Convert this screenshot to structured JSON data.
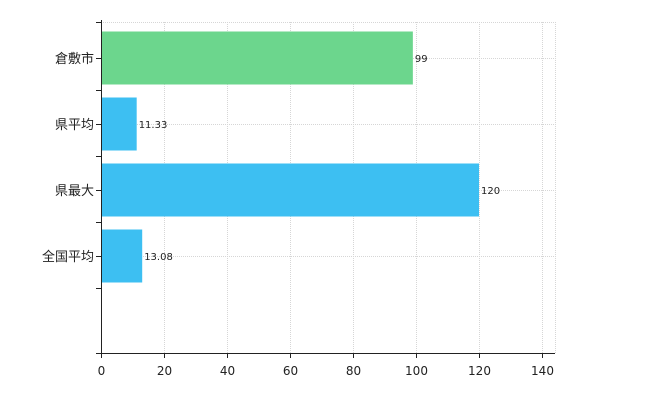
{
  "chart_data": {
    "type": "bar",
    "orientation": "horizontal",
    "categories": [
      "倉敷市",
      "県平均",
      "県最大",
      "全国平均"
    ],
    "values": [
      99,
      11.33,
      120,
      13.08
    ],
    "value_labels": [
      "99",
      "11.33",
      "120",
      "13.08"
    ],
    "bar_colors": [
      "#6cd68d",
      "#3dbff2",
      "#3dbff2",
      "#3dbff2"
    ],
    "xlim": [
      0,
      140
    ],
    "xticks": [
      0,
      20,
      40,
      60,
      80,
      100,
      120,
      140
    ],
    "xtick_labels": [
      "0",
      "20",
      "40",
      "60",
      "80",
      "100",
      "120",
      "140"
    ],
    "grid": true,
    "title": "",
    "xlabel": "",
    "ylabel": ""
  }
}
